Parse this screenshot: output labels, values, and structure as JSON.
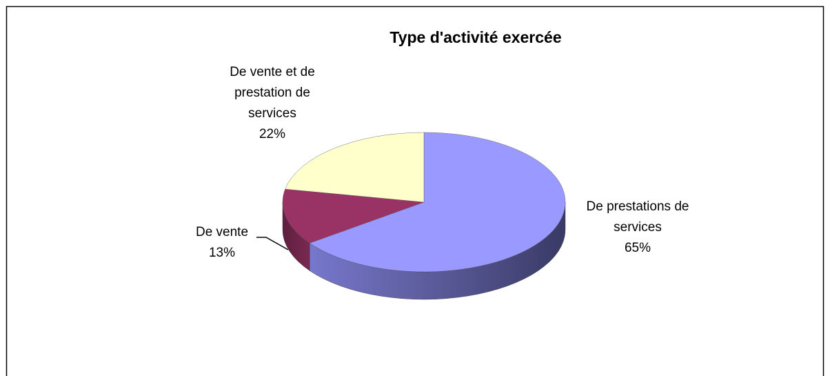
{
  "chart_data": {
    "type": "pie3d",
    "title": "Type d'activité exercée",
    "categories": [
      "De prestations de services",
      "De vente",
      "De vente et de prestation de services"
    ],
    "values": [
      65,
      13,
      22
    ],
    "value_labels": [
      "65%",
      "13%",
      "22%"
    ],
    "colors": [
      "#9999ff",
      "#993366",
      "#ffffcc"
    ]
  }
}
